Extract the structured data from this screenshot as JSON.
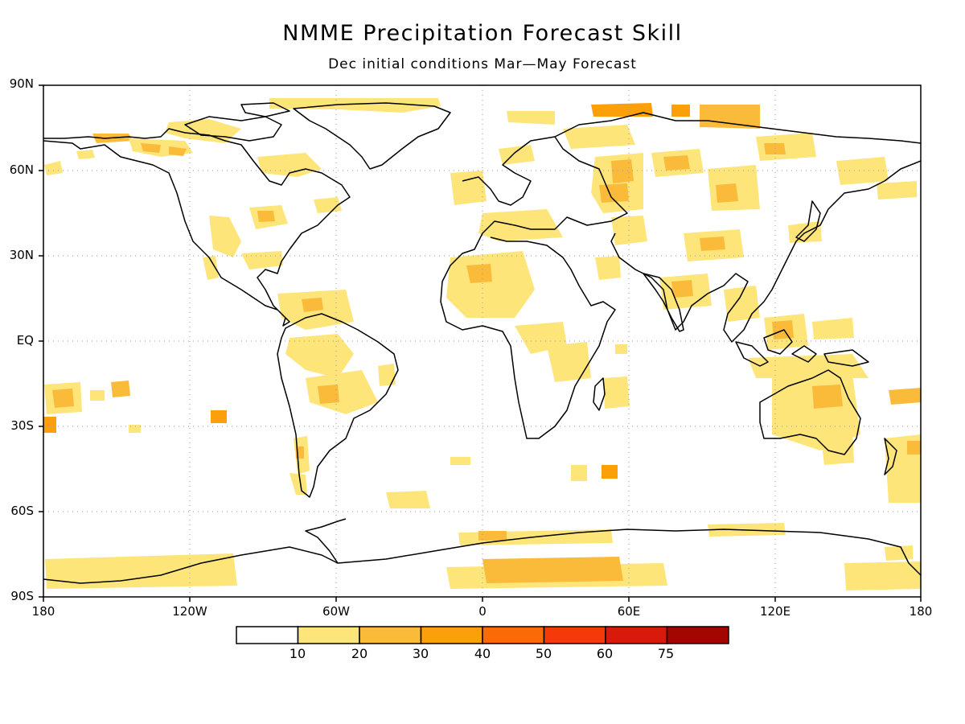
{
  "title": "NMME Precipitation Forecast Skill",
  "subtitle": "Dec initial conditions  Mar—May Forecast",
  "map": {
    "projection": "cylindrical-equidistant",
    "lat_ticks": [
      "90N",
      "60N",
      "30N",
      "EQ",
      "30S",
      "60S",
      "90S"
    ],
    "lon_ticks": [
      "180",
      "120W",
      "60W",
      "0",
      "60E",
      "120E",
      "180"
    ],
    "grid": "dotted"
  },
  "colorbar": {
    "labels": [
      "10",
      "20",
      "30",
      "40",
      "50",
      "60",
      "75"
    ],
    "colors": [
      "#ffffff",
      "#fde57a",
      "#fbbb3a",
      "#fba00a",
      "#fa6a07",
      "#f43a08",
      "#d81a0a",
      "#a30500"
    ]
  }
}
